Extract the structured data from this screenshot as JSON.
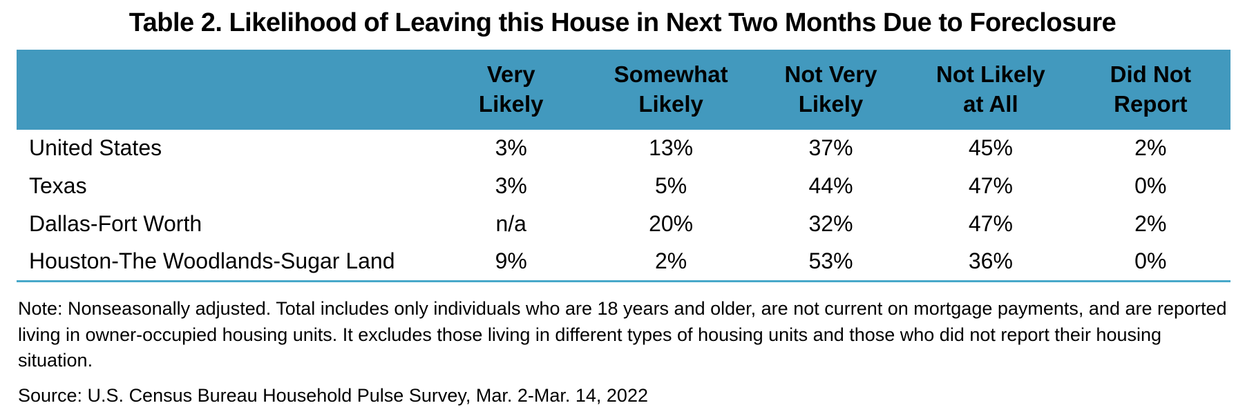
{
  "title": "Table 2. Likelihood of Leaving this House in Next Two Months Due to Foreclosure",
  "header": {
    "cells": [
      {
        "line1": "Very",
        "line2": "Likely"
      },
      {
        "line1": "Somewhat",
        "line2": "Likely"
      },
      {
        "line1": "Not Very",
        "line2": "Likely"
      },
      {
        "line1": "Not Likely",
        "line2": "at All"
      },
      {
        "line1": "Did Not",
        "line2": "Report"
      }
    ]
  },
  "chart_data": {
    "type": "table",
    "title": "Table 2. Likelihood of Leaving this House in Next Two Months Due to Foreclosure",
    "columns": [
      "",
      "Very Likely",
      "Somewhat Likely",
      "Not Very Likely",
      "Not Likely at All",
      "Did Not Report"
    ],
    "rows": [
      {
        "label": "United States",
        "values": [
          "3%",
          "13%",
          "37%",
          "45%",
          "2%"
        ]
      },
      {
        "label": "Texas",
        "values": [
          "3%",
          "5%",
          "44%",
          "47%",
          "0%"
        ]
      },
      {
        "label": "Dallas-Fort Worth",
        "values": [
          "n/a",
          "20%",
          "32%",
          "47%",
          "2%"
        ]
      },
      {
        "label": "Houston-The Woodlands-Sugar Land",
        "values": [
          "9%",
          "2%",
          "53%",
          "36%",
          "0%"
        ]
      }
    ]
  },
  "note": "Note: Nonseasonally adjusted. Total includes only individuals who are 18 years and older, are not current on mortgage payments, and are reported living in owner-occupied housing units. It excludes those living in different types of housing units and those who did not report their housing situation.",
  "source": "Source: U.S. Census Bureau Household Pulse Survey, Mar. 2-Mar. 14, 2022",
  "colors": {
    "header_bg": "#4299BE",
    "table_rule": "#47A8C9",
    "text": "#000000"
  }
}
